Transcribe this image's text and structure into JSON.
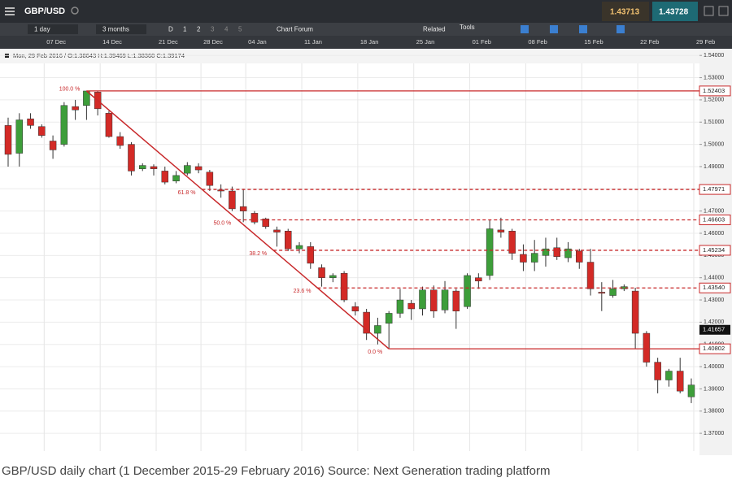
{
  "toolbar": {
    "symbol": "GBP/USD",
    "sell": "1.43713",
    "buy": "1.43728",
    "interval": "1 day",
    "range": "3 months",
    "d": "D",
    "views": [
      "1",
      "2",
      "3",
      "4",
      "5"
    ],
    "forum": "Chart Forum",
    "related": "Related",
    "tools": "Tools"
  },
  "info": "Mon, 29 Feb 2016 / O:1.38643 H:1.39469 L:1.38360 C:1.39174",
  "caption": "GBP/USD daily chart (1 December 2015-29 February 2016) Source: Next Generation trading platform",
  "chart_data": {
    "type": "candlestick",
    "categories": [
      null,
      null,
      null,
      "07 Dec",
      null,
      null,
      null,
      null,
      "14 Dec",
      null,
      null,
      null,
      null,
      "21 Dec",
      null,
      null,
      null,
      "28 Dec",
      null,
      null,
      null,
      "04 Jan",
      null,
      null,
      null,
      null,
      "11 Jan",
      null,
      null,
      null,
      null,
      "18 Jan",
      null,
      null,
      null,
      null,
      "25 Jan",
      null,
      null,
      null,
      null,
      "01 Feb",
      null,
      null,
      null,
      null,
      "08 Feb",
      null,
      null,
      null,
      null,
      "15 Feb",
      null,
      null,
      null,
      null,
      "22 Feb",
      null,
      null,
      null,
      null,
      "29 Feb"
    ],
    "open": [
      1.5085,
      1.496,
      1.5115,
      1.508,
      1.5015,
      1.5,
      1.517,
      1.5175,
      1.5235,
      1.514,
      1.5035,
      1.5,
      1.489,
      1.49,
      1.488,
      1.4835,
      1.487,
      1.49,
      1.4875,
      1.4795,
      1.479,
      1.472,
      1.469,
      1.4665,
      1.4615,
      1.461,
      1.453,
      1.454,
      1.4445,
      1.44,
      1.442,
      1.427,
      1.4245,
      1.415,
      1.4195,
      1.424,
      1.4285,
      1.426,
      1.4345,
      1.4255,
      1.434,
      1.427,
      1.44,
      1.441,
      1.4615,
      1.461,
      1.4505,
      1.447,
      1.45,
      1.4535,
      1.449,
      1.452,
      1.447,
      1.4335,
      1.432,
      1.435,
      1.434,
      1.415,
      1.402,
      1.394,
      1.398,
      1.38643
    ],
    "high": [
      1.512,
      1.514,
      1.514,
      1.509,
      1.504,
      1.519,
      1.52,
      1.52403,
      1.524,
      1.515,
      1.5055,
      1.501,
      1.4915,
      1.491,
      1.49,
      1.488,
      1.492,
      1.4915,
      1.4885,
      1.482,
      1.481,
      1.48,
      1.47,
      1.467,
      1.463,
      1.462,
      1.456,
      1.456,
      1.446,
      1.442,
      1.443,
      1.429,
      1.426,
      1.422,
      1.425,
      1.435,
      1.43,
      1.436,
      1.4365,
      1.4385,
      1.435,
      1.442,
      1.442,
      1.466,
      1.467,
      1.462,
      1.455,
      1.457,
      1.458,
      1.458,
      1.456,
      1.453,
      1.453,
      1.438,
      1.439,
      1.437,
      1.4355,
      1.416,
      1.404,
      1.399,
      1.404,
      1.39469
    ],
    "low": [
      1.49,
      1.49,
      1.507,
      1.503,
      1.4935,
      1.499,
      1.511,
      1.511,
      1.513,
      1.503,
      1.498,
      1.486,
      1.488,
      1.486,
      1.482,
      1.4825,
      1.486,
      1.487,
      1.479,
      1.476,
      1.47,
      1.465,
      1.464,
      1.462,
      1.454,
      1.452,
      1.451,
      1.444,
      1.436,
      1.438,
      1.429,
      1.423,
      1.412,
      1.41,
      1.40802,
      1.422,
      1.421,
      1.423,
      1.422,
      1.424,
      1.417,
      1.426,
      1.435,
      1.439,
      1.458,
      1.448,
      1.443,
      1.443,
      1.445,
      1.448,
      1.447,
      1.444,
      1.432,
      1.425,
      1.431,
      1.434,
      1.408,
      1.4,
      1.388,
      1.391,
      1.388,
      1.3836
    ],
    "close": [
      1.4955,
      1.511,
      1.5085,
      1.504,
      1.4975,
      1.5175,
      1.5155,
      1.524,
      1.516,
      1.5035,
      1.4995,
      1.488,
      1.4905,
      1.489,
      1.483,
      1.486,
      1.4905,
      1.4885,
      1.4815,
      1.479,
      1.471,
      1.47,
      1.465,
      1.463,
      1.4605,
      1.453,
      1.4545,
      1.4465,
      1.44,
      1.441,
      1.43,
      1.425,
      1.415,
      1.4185,
      1.424,
      1.43,
      1.426,
      1.4345,
      1.425,
      1.4345,
      1.425,
      1.441,
      1.4385,
      1.462,
      1.4605,
      1.451,
      1.447,
      1.451,
      1.453,
      1.4495,
      1.453,
      1.447,
      1.435,
      1.433,
      1.435,
      1.436,
      1.415,
      1.402,
      1.394,
      1.398,
      1.389,
      1.39174
    ],
    "up_color": "#3d9e3a",
    "down_color": "#d32a26",
    "fib_color": "#c8282a",
    "fibonacci": [
      {
        "name": "100.0 %",
        "value": 1.52403,
        "label": "1.52403"
      },
      {
        "name": "61.8 %",
        "value": 1.47971,
        "label": "1.47971"
      },
      {
        "name": "50.0 %",
        "value": 1.46603,
        "label": "1.46603"
      },
      {
        "name": "38.2 %",
        "value": 1.45234,
        "label": "1.45234"
      },
      {
        "name": "23.6 %",
        "value": 1.4354,
        "label": "1.43540"
      },
      {
        "name": "0.0 %",
        "value": 1.40802,
        "label": "1.40802"
      }
    ],
    "last_price": 1.41657,
    "ylim": [
      1.362,
      1.543
    ],
    "yticks": [
      {
        "value": 1.37,
        "label": "1.37000"
      },
      {
        "value": 1.38,
        "label": "1.38000"
      },
      {
        "value": 1.39,
        "label": "1.39000"
      },
      {
        "value": 1.4,
        "label": "1.40000"
      },
      {
        "value": 1.41,
        "label": "1.41000"
      },
      {
        "value": 1.42,
        "label": "1.42000"
      },
      {
        "value": 1.43,
        "label": "1.43000"
      },
      {
        "value": 1.44,
        "label": "1.44000"
      },
      {
        "value": 1.45,
        "label": "1.45000"
      },
      {
        "value": 1.46,
        "label": "1.46000"
      },
      {
        "value": 1.47,
        "label": "1.47000"
      },
      {
        "value": 1.48,
        "label": "1.48000"
      },
      {
        "value": 1.49,
        "label": "1.49000"
      },
      {
        "value": 1.5,
        "label": "1.50000"
      },
      {
        "value": 1.51,
        "label": "1.51000"
      },
      {
        "value": 1.52,
        "label": "1.52000"
      },
      {
        "value": 1.53,
        "label": "1.53000"
      },
      {
        "value": 1.54,
        "label": "1.54000"
      }
    ],
    "grid": true
  }
}
